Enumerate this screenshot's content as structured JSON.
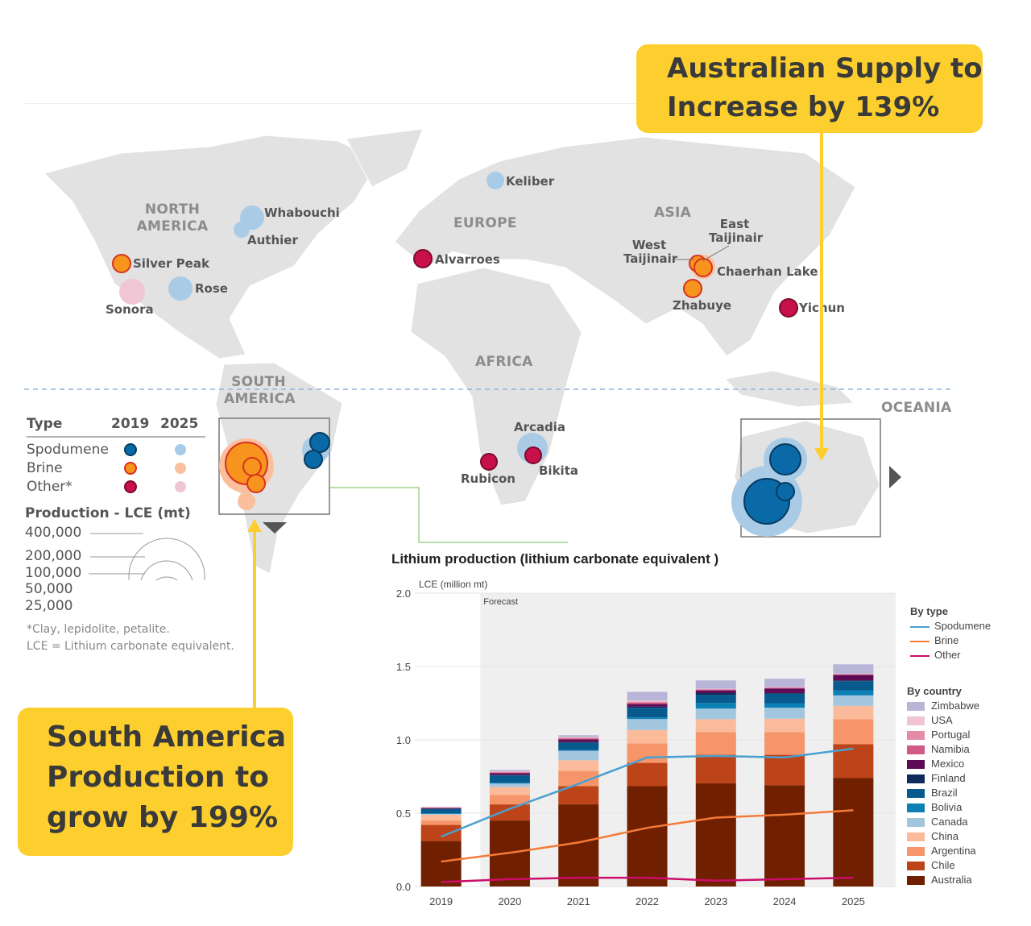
{
  "callouts": {
    "australia": "Australian Supply to Increase by 139%",
    "south_america": "South America Production to grow by 199%"
  },
  "map": {
    "regions": {
      "north_america": "NORTH AMERICA",
      "europe": "EUROPE",
      "asia": "ASIA",
      "africa": "AFRICA",
      "south_america": "SOUTH AMERICA",
      "oceania": "OCEANIA"
    },
    "sites": [
      {
        "name": "Whabouchi",
        "type": "Spodumene",
        "year": "2025"
      },
      {
        "name": "Authier",
        "type": "Spodumene",
        "year": "2025"
      },
      {
        "name": "Silver Peak",
        "type": "Brine",
        "year": "2019"
      },
      {
        "name": "Rose",
        "type": "Spodumene",
        "year": "2025"
      },
      {
        "name": "Sonora",
        "type": "Other",
        "year": "2025"
      },
      {
        "name": "Keliber",
        "type": "Spodumene",
        "year": "2025"
      },
      {
        "name": "Alvarroes",
        "type": "Other",
        "year": "2019"
      },
      {
        "name": "West Taijinair",
        "type": "Brine",
        "year": "2019"
      },
      {
        "name": "East Taijinair",
        "type": "Brine",
        "year": "2019"
      },
      {
        "name": "Chaerhan Lake",
        "type": "Brine",
        "year": "2019"
      },
      {
        "name": "Zhabuye",
        "type": "Brine",
        "year": "2019"
      },
      {
        "name": "Yichun",
        "type": "Other",
        "year": "2019"
      },
      {
        "name": "Arcadia",
        "type": "Spodumene",
        "year": "2025"
      },
      {
        "name": "Rubicon",
        "type": "Other",
        "year": "2019"
      },
      {
        "name": "Bikita",
        "type": "Other",
        "year": "2019"
      }
    ],
    "legend": {
      "type_header": "Type",
      "year1": "2019",
      "year2": "2025",
      "types": [
        "Spodumene",
        "Brine",
        "Other*"
      ],
      "colors_2019": [
        "#0a6aa8",
        "#f7941d",
        "#c8104a"
      ],
      "colors_2025": [
        "#a9cbe6",
        "#fbbf9d",
        "#f0c6d4"
      ],
      "production_title": "Production - LCE (mt)",
      "sizes": [
        "400,000",
        "200,000",
        "100,000",
        "50,000",
        "25,000"
      ],
      "footnote1": "*Clay, lepidolite, petalite.",
      "footnote2": "LCE = Lithium carbonate equivalent."
    }
  },
  "chart_data": {
    "type": "bar",
    "stacked": true,
    "title": "Lithium production (lithium carbonate equivalent )",
    "ylabel": "LCE (million mt)",
    "annotation": "Forecast",
    "ylim": [
      0,
      2.0
    ],
    "yticks": [
      "0.0",
      "0.5",
      "1.0",
      "1.5",
      "2.0"
    ],
    "categories": [
      "2019",
      "2020",
      "2021",
      "2022",
      "2023",
      "2024",
      "2025"
    ],
    "forecast_from": "2020",
    "grid": true,
    "legend_position": "right",
    "series": [
      {
        "name": "Australia",
        "color": "#702000",
        "values": [
          0.31,
          0.45,
          0.56,
          0.684,
          0.703,
          0.69,
          0.739
        ]
      },
      {
        "name": "Chile",
        "color": "#bd4418",
        "values": [
          0.11,
          0.11,
          0.124,
          0.159,
          0.195,
          0.208,
          0.232
        ]
      },
      {
        "name": "Argentina",
        "color": "#f6956a",
        "values": [
          0.03,
          0.065,
          0.104,
          0.133,
          0.155,
          0.155,
          0.17
        ]
      },
      {
        "name": "China",
        "color": "#fbbb9a",
        "values": [
          0.04,
          0.053,
          0.073,
          0.091,
          0.088,
          0.091,
          0.091
        ]
      },
      {
        "name": "Canada",
        "color": "#a3c6df",
        "values": [
          0.005,
          0.024,
          0.064,
          0.075,
          0.072,
          0.075,
          0.071
        ]
      },
      {
        "name": "Bolivia",
        "color": "#0b80b5",
        "values": [
          0.005,
          0.005,
          0.005,
          0.011,
          0.038,
          0.031,
          0.035
        ]
      },
      {
        "name": "Brazil",
        "color": "#065a8e",
        "values": [
          0.03,
          0.05,
          0.05,
          0.066,
          0.055,
          0.064,
          0.062
        ]
      },
      {
        "name": "Finland",
        "color": "#0d2b5b",
        "values": [
          0.0,
          0.005,
          0.005,
          0.007,
          0.013,
          0.005,
          0.005
        ]
      },
      {
        "name": "Mexico",
        "color": "#5e0a55",
        "values": [
          0.003,
          0.01,
          0.018,
          0.018,
          0.018,
          0.031,
          0.037
        ]
      },
      {
        "name": "Namibia",
        "color": "#d35a86",
        "values": [
          0.003,
          0.005,
          0.007,
          0.009,
          0.005,
          0.004,
          0.004
        ]
      },
      {
        "name": "Portugal",
        "color": "#e48ba6",
        "values": [
          0.003,
          0.005,
          0.005,
          0.007,
          0.004,
          0.003,
          0.003
        ]
      },
      {
        "name": "USA",
        "color": "#f0c4d2",
        "values": [
          0.002,
          0.003,
          0.004,
          0.007,
          0.002,
          0.002,
          0.002
        ]
      },
      {
        "name": "Zimbabwe",
        "color": "#b9b5d9",
        "values": [
          0.003,
          0.01,
          0.013,
          0.06,
          0.057,
          0.058,
          0.064
        ]
      }
    ],
    "lines": [
      {
        "name": "Spodumene",
        "color": "#4a9fd0",
        "values": [
          0.34,
          0.53,
          0.7,
          0.88,
          0.89,
          0.88,
          0.94
        ]
      },
      {
        "name": "Brine",
        "color": "#f47a38",
        "values": [
          0.17,
          0.23,
          0.3,
          0.4,
          0.47,
          0.49,
          0.52
        ]
      },
      {
        "name": "Other",
        "color": "#cc0d6b",
        "values": [
          0.03,
          0.05,
          0.06,
          0.06,
          0.04,
          0.05,
          0.06
        ]
      }
    ],
    "legend": {
      "by_type": "By type",
      "by_country": "By country"
    }
  }
}
